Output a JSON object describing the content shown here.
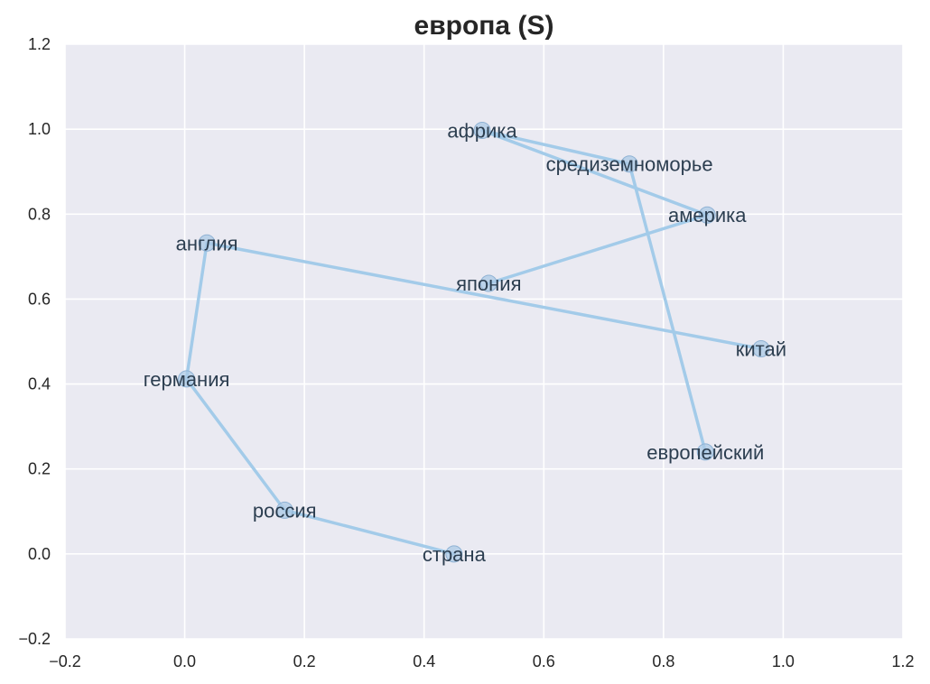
{
  "chart_data": {
    "type": "line",
    "title": "европа (S)",
    "xlabel": "",
    "ylabel": "",
    "xlim": [
      -0.2,
      1.2
    ],
    "ylim": [
      -0.2,
      1.2
    ],
    "xticks": [
      -0.2,
      0.0,
      0.2,
      0.4,
      0.6,
      0.8,
      1.0,
      1.2
    ],
    "yticks": [
      -0.2,
      0.0,
      0.2,
      0.4,
      0.6,
      0.8,
      1.0,
      1.2
    ],
    "xtick_labels": [
      "−0.2",
      "0.0",
      "0.2",
      "0.4",
      "0.6",
      "0.8",
      "1.0",
      "1.2"
    ],
    "ytick_labels": [
      "−0.2",
      "0.0",
      "0.2",
      "0.4",
      "0.6",
      "0.8",
      "1.0",
      "1.2"
    ],
    "grid": true,
    "colors": {
      "background": "#eaeaf2",
      "grid": "#ffffff",
      "line": "#a3cbe9",
      "marker_fill": "#abc9e6",
      "marker_stroke": "#8fb2d4",
      "label": "#2c3e50"
    },
    "points": [
      {
        "label": "страна",
        "x": 0.45,
        "y": 0.0
      },
      {
        "label": "россия",
        "x": 0.167,
        "y": 0.103
      },
      {
        "label": "германия",
        "x": 0.003,
        "y": 0.412
      },
      {
        "label": "англия",
        "x": 0.037,
        "y": 0.732
      },
      {
        "label": "китай",
        "x": 0.963,
        "y": 0.483
      },
      {
        "label": "япония",
        "x": 0.508,
        "y": 0.637
      },
      {
        "label": "америка",
        "x": 0.873,
        "y": 0.798
      },
      {
        "label": "африка",
        "x": 0.497,
        "y": 0.997
      },
      {
        "label": "средиземноморье",
        "x": 0.743,
        "y": 0.918
      },
      {
        "label": "европейский",
        "x": 0.87,
        "y": 0.24
      }
    ],
    "path_order": [
      "страна",
      "россия",
      "германия",
      "англия",
      "китай"
    ],
    "path_order_2": [
      "япония",
      "америка",
      "африка",
      "средиземноморье",
      "европейский"
    ]
  }
}
